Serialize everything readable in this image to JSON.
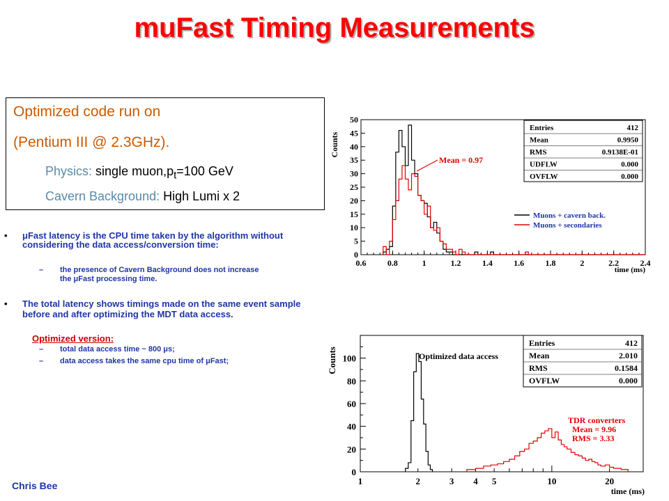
{
  "title": "muFast Timing Measurements",
  "infobox": {
    "line1": "Optimized code run on",
    "line2": "(Pentium III @ 2.3GHz).",
    "physics_label": "Physics:",
    "physics_value_pre": "single muon,p",
    "physics_value_sub": "t",
    "physics_value_post": "=100 GeV",
    "cavern_label": "Cavern Background:",
    "cavern_value": "High Lumi x 2"
  },
  "bullets": {
    "b1_text": "μFast latency is the CPU time taken by the algorithm without considering the data access/conversion time:",
    "b1_sub_line1": "the presence of Cavern Background does not increase",
    "b1_sub_line2": "the μFast processing time.",
    "b2_text": "The total latency shows timings made on the same event sample before and after optimizing the MDT data access.",
    "optimized_label": "Optimized version:",
    "opt_sub1": "total data access time ~ 800 μs;",
    "opt_sub2": "data access takes the same cpu time of μFast;",
    "dot": "•",
    "dash": "–"
  },
  "footer": "Chris Bee",
  "chart_data": [
    {
      "type": "histogram",
      "xlabel": "time (ms)",
      "ylabel": "Counts",
      "xlim": [
        0.6,
        2.4
      ],
      "ylim": [
        0,
        50
      ],
      "x_ticks": [
        "0.6",
        "0.8",
        "1",
        "1.2",
        "1.4",
        "1.6",
        "1.8",
        "2",
        "2.2",
        "2.4"
      ],
      "y_ticks": [
        "0",
        "5",
        "10",
        "15",
        "20",
        "25",
        "30",
        "35",
        "40",
        "45",
        "50"
      ],
      "bin_width": 0.02,
      "stats": [
        {
          "label": "Entries",
          "value": "412"
        },
        {
          "label": "Mean",
          "value": "0.9950"
        },
        {
          "label": "RMS",
          "value": "0.9138E-01"
        },
        {
          "label": "UDFLW",
          "value": "0.000"
        },
        {
          "label": "OVFLW",
          "value": "0.000"
        }
      ],
      "annotation": "Mean = 0.97",
      "series": [
        {
          "name": "Muons + cavern back.",
          "color": "#000000",
          "bin_start": 0.74,
          "values": [
            1,
            2,
            3,
            18,
            38,
            46,
            40,
            33,
            48,
            35,
            30,
            22,
            20,
            19,
            14,
            10,
            12,
            8,
            5,
            2,
            1,
            1,
            0,
            0,
            0,
            0,
            0,
            0,
            0,
            1,
            0,
            0,
            0,
            0,
            1,
            0,
            0,
            0,
            0,
            0,
            0,
            0,
            0,
            0,
            0,
            0,
            0,
            0,
            0,
            0,
            0,
            0,
            0,
            0,
            0,
            0,
            0,
            0,
            0,
            0,
            0,
            0,
            0,
            0,
            0,
            0,
            0,
            0,
            0,
            0,
            0,
            0,
            0,
            0,
            0,
            0,
            0,
            0,
            0,
            0,
            0,
            0,
            0,
            0
          ]
        },
        {
          "name": "Muons + secondaries",
          "color": "#e00000",
          "bin_start": 0.74,
          "values": [
            3,
            0,
            5,
            13,
            20,
            28,
            33,
            28,
            24,
            30,
            29,
            22,
            20,
            15,
            18,
            10,
            9,
            10,
            5,
            4,
            2,
            2,
            1,
            0,
            2,
            1,
            0,
            0,
            0,
            0,
            0,
            0,
            0,
            0,
            0,
            0,
            0,
            0,
            0,
            0,
            0,
            0,
            0,
            0,
            0,
            1,
            0,
            0,
            0,
            0,
            0,
            0,
            0,
            0,
            0,
            0,
            0,
            0,
            0,
            0,
            0,
            0,
            0,
            0,
            0,
            0,
            0,
            0,
            0,
            0,
            0,
            0,
            0,
            0,
            0,
            0,
            0,
            0,
            0,
            0,
            0,
            0,
            0,
            0
          ]
        }
      ]
    },
    {
      "type": "histogram",
      "xlabel": "time (ms)",
      "ylabel": "Counts",
      "xscale": "log",
      "xlim": [
        1,
        30
      ],
      "ylim": [
        0,
        120
      ],
      "x_ticks": [
        "1",
        "2",
        "3",
        "4",
        "5",
        "10",
        "20"
      ],
      "y_ticks": [
        "0",
        "20",
        "40",
        "60",
        "80",
        "100"
      ],
      "stats": [
        {
          "label": "Entries",
          "value": "412"
        },
        {
          "label": "Mean",
          "value": "2.010"
        },
        {
          "label": "RMS",
          "value": "0.1584"
        },
        {
          "label": "OVFLW",
          "value": "0.000"
        }
      ],
      "annotation_optimized": "Optimized data access",
      "annotation_tdr": [
        "TDR converters",
        "Mean = 9.96",
        "RMS  = 3.33"
      ],
      "series": [
        {
          "name": "Optimized data access",
          "color": "#000000",
          "edges": [
            1.72,
            1.78,
            1.84,
            1.9,
            1.96,
            2.02,
            2.08,
            2.14,
            2.2,
            2.26,
            2.32,
            2.38
          ],
          "values": [
            3,
            8,
            45,
            88,
            104,
            97,
            64,
            42,
            18,
            6,
            2
          ]
        },
        {
          "name": "TDR converters",
          "color": "#e00000",
          "edges": [
            3.6,
            4.0,
            4.4,
            4.8,
            5.2,
            5.6,
            6.0,
            6.4,
            6.8,
            7.2,
            7.6,
            8.0,
            8.4,
            8.8,
            9.2,
            9.6,
            10.0,
            10.4,
            10.8,
            11.2,
            11.6,
            12.0,
            12.6,
            13.2,
            13.8,
            14.4,
            15.0,
            15.6,
            16.2,
            16.8,
            17.4,
            18.0,
            19.0,
            20.0,
            21.0,
            22.0,
            23.0,
            24.0,
            25.0
          ],
          "values": [
            2,
            3,
            5,
            6,
            7,
            9,
            11,
            14,
            18,
            20,
            25,
            27,
            30,
            34,
            36,
            38,
            30,
            35,
            28,
            24,
            22,
            20,
            17,
            15,
            14,
            12,
            10,
            11,
            9,
            8,
            6,
            5,
            6,
            4,
            3,
            3,
            2,
            2
          ]
        }
      ]
    }
  ]
}
